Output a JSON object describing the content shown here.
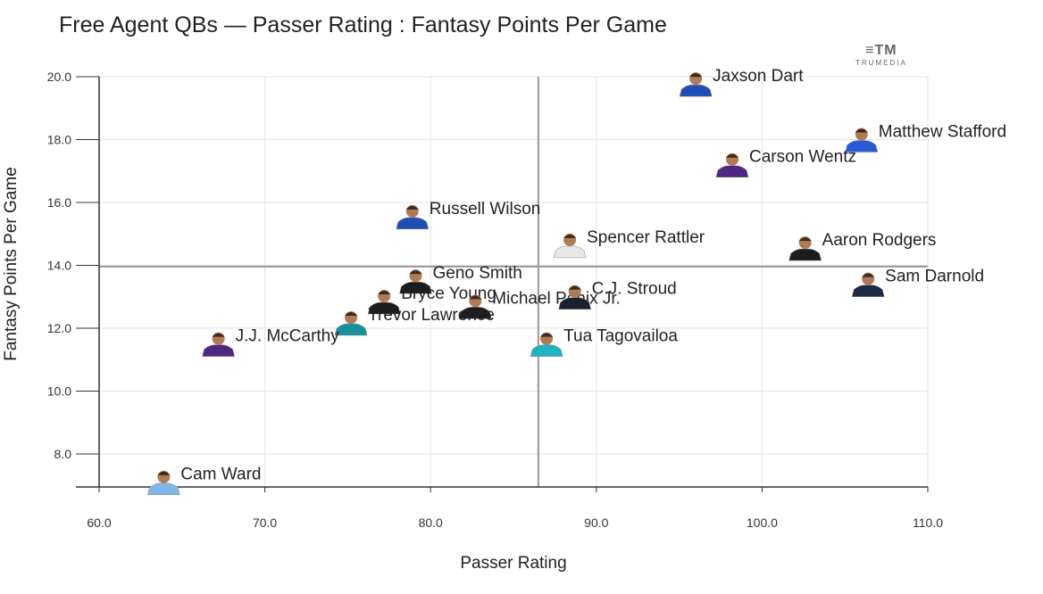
{
  "chart_data": {
    "type": "scatter",
    "title": "Free Agent QBs — Passer Rating : Fantasy Points Per Game",
    "xlabel": "Passer Rating",
    "ylabel": "Fantasy Points Per Game",
    "xlim": [
      60,
      110
    ],
    "ylim": [
      6.95,
      20.0
    ],
    "xticks": [
      "60.0",
      "70.0",
      "80.0",
      "90.0",
      "100.0",
      "110.0"
    ],
    "yticks": [
      "8.0",
      "10.0",
      "12.0",
      "14.0",
      "16.0",
      "18.0",
      "20.0"
    ],
    "grid": true,
    "reference_lines": {
      "x": 86.5,
      "y": 13.96
    },
    "points": [
      {
        "name": "Jaxson Dart",
        "x": 96.0,
        "y": 19.77,
        "color": "#1f4fb5"
      },
      {
        "name": "Matthew Stafford",
        "x": 106.0,
        "y": 18.0,
        "color": "#2a5bd7"
      },
      {
        "name": "Carson Wentz",
        "x": 98.2,
        "y": 17.2,
        "color": "#4f2683"
      },
      {
        "name": "Russell Wilson",
        "x": 78.9,
        "y": 15.55,
        "color": "#1f4fb5"
      },
      {
        "name": "Spencer Rattler",
        "x": 88.4,
        "y": 14.64,
        "color": "#e8e8e8"
      },
      {
        "name": "Aaron Rodgers",
        "x": 102.6,
        "y": 14.55,
        "color": "#1c1c1c"
      },
      {
        "name": "Sam Darnold",
        "x": 106.4,
        "y": 13.4,
        "color": "#1e2b45"
      },
      {
        "name": "Geno Smith",
        "x": 79.1,
        "y": 13.5,
        "color": "#1c1c1c"
      },
      {
        "name": "Bryce Young",
        "x": 77.2,
        "y": 12.85,
        "color": "#1c1c1c"
      },
      {
        "name": "Michael Penix Jr.",
        "x": 82.7,
        "y": 12.7,
        "color": "#1c1c1c"
      },
      {
        "name": "C.J. Stroud",
        "x": 88.7,
        "y": 13.0,
        "color": "#1b1f2e"
      },
      {
        "name": "Trevor Lawrence",
        "x": 75.2,
        "y": 12.17,
        "color": "#17919c"
      },
      {
        "name": "J.J. McCarthy",
        "x": 67.2,
        "y": 11.5,
        "color": "#4f2683"
      },
      {
        "name": "Tua Tagovailoa",
        "x": 87.0,
        "y": 11.5,
        "color": "#1fb3c4"
      },
      {
        "name": "Cam Ward",
        "x": 63.9,
        "y": 7.1,
        "color": "#7fb7e8"
      }
    ]
  },
  "branding": {
    "logo_mark": "≡TM",
    "logo_text": "TRUMEDIA"
  }
}
